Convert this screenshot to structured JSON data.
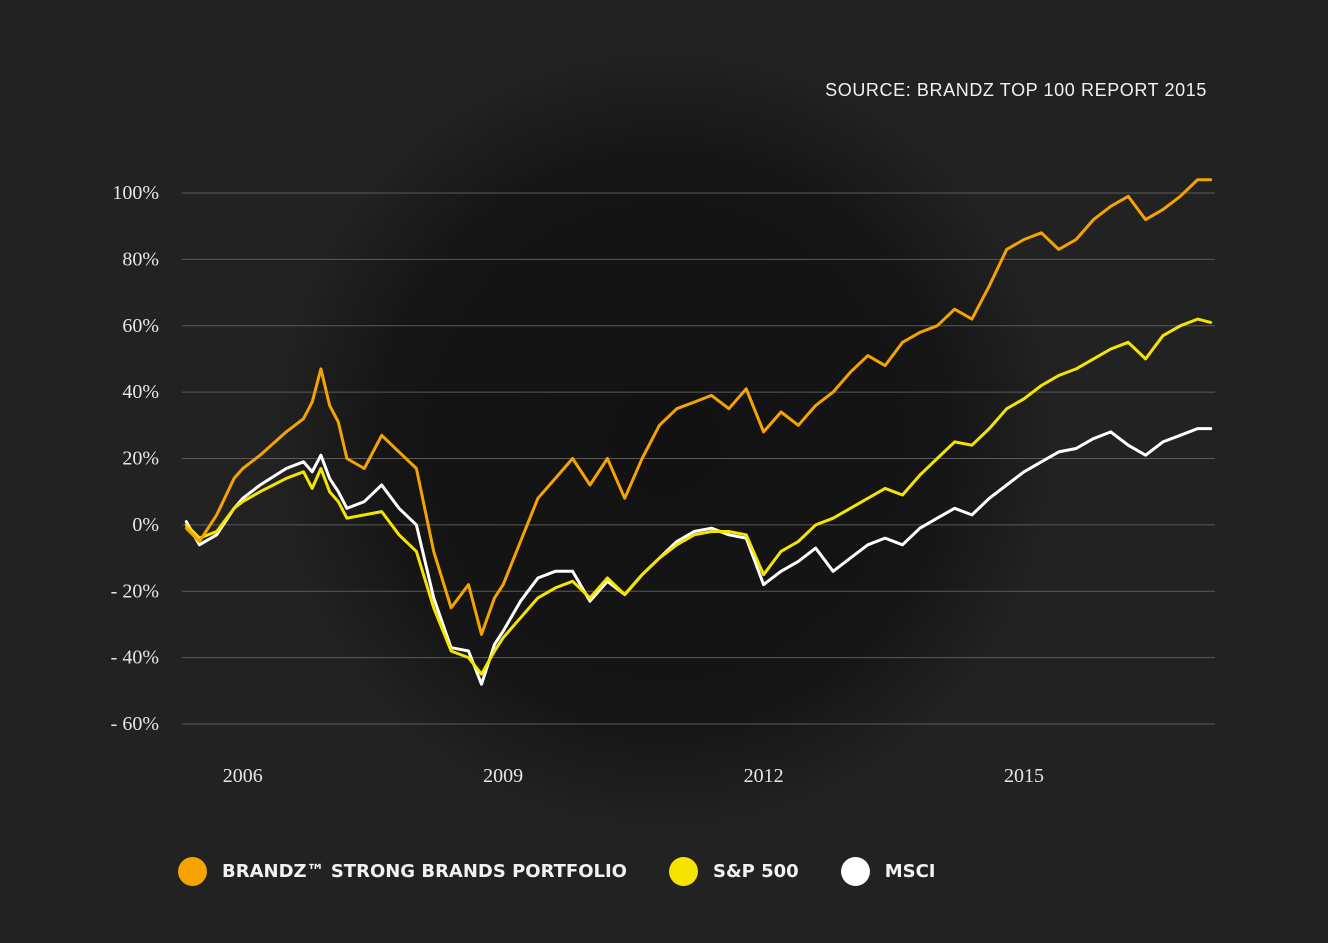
{
  "source": "SOURCE: BRANDZ TOP 100 REPORT 2015",
  "chart_data": {
    "type": "line",
    "xlim": [
      2005.3,
      2017.2
    ],
    "ylim": [
      -60,
      100
    ],
    "y_ticks": [
      100,
      80,
      60,
      40,
      20,
      0,
      -20,
      -40,
      -60
    ],
    "y_tick_labels": [
      "100%",
      "80%",
      "60%",
      "40%",
      "20%",
      "0%",
      "- 20%",
      "- 40%",
      "- 60%"
    ],
    "x_ticks": [
      2006,
      2009,
      2012,
      2015
    ],
    "x_tick_labels": [
      "2006",
      "2009",
      "2012",
      "2015"
    ],
    "grid": true,
    "legend_position": "bottom",
    "series": [
      {
        "name": "BRANDZ™ STRONG BRANDS PORTFOLIO",
        "color": "#f5a300",
        "x": [
          2005.35,
          2005.5,
          2005.7,
          2005.9,
          2006.0,
          2006.2,
          2006.5,
          2006.7,
          2006.8,
          2006.9,
          2007.0,
          2007.1,
          2007.2,
          2007.4,
          2007.6,
          2007.8,
          2008.0,
          2008.2,
          2008.4,
          2008.6,
          2008.75,
          2008.9,
          2009.0,
          2009.2,
          2009.4,
          2009.6,
          2009.8,
          2010.0,
          2010.2,
          2010.4,
          2010.6,
          2010.8,
          2011.0,
          2011.2,
          2011.4,
          2011.6,
          2011.8,
          2012.0,
          2012.2,
          2012.4,
          2012.6,
          2012.8,
          2013.0,
          2013.2,
          2013.4,
          2013.6,
          2013.8,
          2014.0,
          2014.2,
          2014.4,
          2014.6,
          2014.8,
          2015.0,
          2015.2,
          2015.4,
          2015.6,
          2015.8,
          2016.0,
          2016.2,
          2016.4,
          2016.6,
          2016.8,
          2017.0,
          2017.15
        ],
        "y": [
          -1,
          -5,
          3,
          14,
          17,
          21,
          28,
          32,
          37,
          47,
          36,
          31,
          20,
          17,
          27,
          22,
          17,
          -8,
          -25,
          -18,
          -33,
          -22,
          -18,
          -5,
          8,
          14,
          20,
          12,
          20,
          8,
          20,
          30,
          35,
          37,
          39,
          35,
          41,
          28,
          34,
          30,
          36,
          40,
          46,
          51,
          48,
          55,
          58,
          60,
          65,
          62,
          72,
          83,
          86,
          88,
          83,
          86,
          92,
          96,
          99,
          92,
          95,
          99,
          104,
          104
        ]
      },
      {
        "name": "S&P 500",
        "color": "#f4e400",
        "x": [
          2005.35,
          2005.5,
          2005.7,
          2005.9,
          2006.0,
          2006.2,
          2006.5,
          2006.7,
          2006.8,
          2006.9,
          2007.0,
          2007.1,
          2007.2,
          2007.4,
          2007.6,
          2007.8,
          2008.0,
          2008.2,
          2008.4,
          2008.6,
          2008.75,
          2008.9,
          2009.0,
          2009.2,
          2009.4,
          2009.6,
          2009.8,
          2010.0,
          2010.2,
          2010.4,
          2010.6,
          2010.8,
          2011.0,
          2011.2,
          2011.4,
          2011.6,
          2011.8,
          2012.0,
          2012.2,
          2012.4,
          2012.6,
          2012.8,
          2013.0,
          2013.2,
          2013.4,
          2013.6,
          2013.8,
          2014.0,
          2014.2,
          2014.4,
          2014.6,
          2014.8,
          2015.0,
          2015.2,
          2015.4,
          2015.6,
          2015.8,
          2016.0,
          2016.2,
          2016.4,
          2016.6,
          2016.8,
          2017.0,
          2017.15
        ],
        "y": [
          0,
          -4,
          -2,
          5,
          7,
          10,
          14,
          16,
          11,
          17,
          10,
          7,
          2,
          3,
          4,
          -3,
          -8,
          -25,
          -38,
          -40,
          -45,
          -38,
          -34,
          -28,
          -22,
          -19,
          -17,
          -22,
          -16,
          -21,
          -15,
          -10,
          -6,
          -3,
          -2,
          -2,
          -3,
          -15,
          -8,
          -5,
          0,
          2,
          5,
          8,
          11,
          9,
          15,
          20,
          25,
          24,
          29,
          35,
          38,
          42,
          45,
          47,
          50,
          53,
          55,
          50,
          57,
          60,
          62,
          61
        ]
      },
      {
        "name": "MSCI",
        "color": "#ffffff",
        "x": [
          2005.35,
          2005.5,
          2005.7,
          2005.9,
          2006.0,
          2006.2,
          2006.5,
          2006.7,
          2006.8,
          2006.9,
          2007.0,
          2007.1,
          2007.2,
          2007.4,
          2007.6,
          2007.8,
          2008.0,
          2008.2,
          2008.4,
          2008.6,
          2008.75,
          2008.9,
          2009.0,
          2009.2,
          2009.4,
          2009.6,
          2009.8,
          2010.0,
          2010.2,
          2010.4,
          2010.6,
          2010.8,
          2011.0,
          2011.2,
          2011.4,
          2011.6,
          2011.8,
          2012.0,
          2012.2,
          2012.4,
          2012.6,
          2012.8,
          2013.0,
          2013.2,
          2013.4,
          2013.6,
          2013.8,
          2014.0,
          2014.2,
          2014.4,
          2014.6,
          2014.8,
          2015.0,
          2015.2,
          2015.4,
          2015.6,
          2015.8,
          2016.0,
          2016.2,
          2016.4,
          2016.6,
          2016.8,
          2017.0,
          2017.15
        ],
        "y": [
          1,
          -6,
          -3,
          5,
          8,
          12,
          17,
          19,
          16,
          21,
          14,
          10,
          5,
          7,
          12,
          5,
          0,
          -22,
          -37,
          -38,
          -48,
          -36,
          -32,
          -23,
          -16,
          -14,
          -14,
          -23,
          -17,
          -21,
          -15,
          -10,
          -5,
          -2,
          -1,
          -3,
          -4,
          -18,
          -14,
          -11,
          -7,
          -14,
          -10,
          -6,
          -4,
          -6,
          -1,
          2,
          5,
          3,
          8,
          12,
          16,
          19,
          22,
          23,
          26,
          28,
          24,
          21,
          25,
          27,
          29,
          29
        ]
      }
    ]
  }
}
